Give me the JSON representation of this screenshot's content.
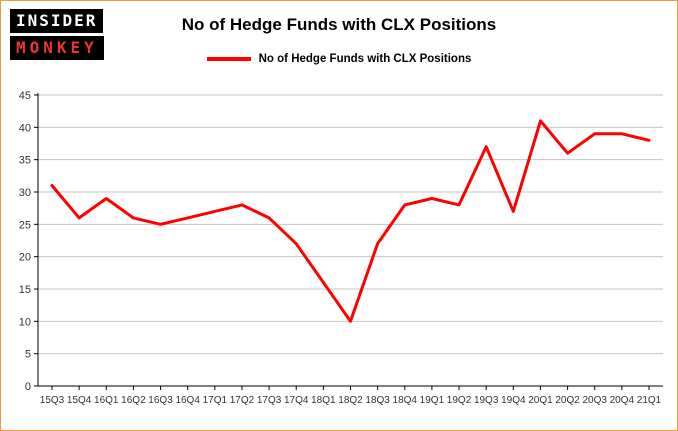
{
  "logo": {
    "line1": "INSIDER",
    "line2": "MONKEY"
  },
  "header": {
    "title": "No of Hedge Funds with CLX Positions"
  },
  "legend": {
    "label": "No of Hedge Funds with CLX Positions",
    "color": "#ff0000"
  },
  "chart_data": {
    "type": "line",
    "title": "No of Hedge Funds with CLX Positions",
    "categories": [
      "15Q3",
      "15Q4",
      "16Q1",
      "16Q2",
      "16Q3",
      "16Q4",
      "17Q1",
      "17Q2",
      "17Q3",
      "17Q4",
      "18Q1",
      "18Q2",
      "18Q3",
      "18Q4",
      "19Q1",
      "19Q2",
      "19Q3",
      "19Q4",
      "20Q1",
      "20Q2",
      "20Q3",
      "20Q4",
      "21Q1"
    ],
    "series": [
      {
        "name": "No of Hedge Funds with CLX Positions",
        "color": "#ff0000",
        "values": [
          31,
          26,
          29,
          26,
          25,
          26,
          27,
          28,
          26,
          22,
          16,
          10,
          22,
          28,
          29,
          28,
          37,
          27,
          41,
          36,
          39,
          39,
          38
        ]
      }
    ],
    "xlabel": "",
    "ylabel": "",
    "ylim": [
      0,
      45
    ],
    "ytick_step": 5,
    "grid": true,
    "grid_color": "#c6c6c6",
    "axis_color": "#000000",
    "tick_label_color": "#333333",
    "legend_position": "top"
  }
}
